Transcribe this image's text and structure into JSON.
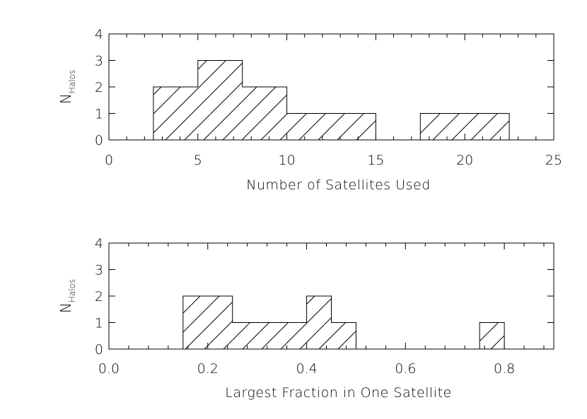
{
  "chart_data": [
    {
      "type": "bar",
      "subtype": "histogram",
      "xlabel": "Number of Satellites Used",
      "ylabel_main": "N",
      "ylabel_sub": "Halos",
      "xlim": [
        0,
        25
      ],
      "ylim": [
        0,
        4
      ],
      "xticks": [
        0,
        5,
        10,
        15,
        20,
        25
      ],
      "xtick_labels": [
        "0",
        "5",
        "10",
        "15",
        "20",
        "25"
      ],
      "yticks": [
        0,
        1,
        2,
        3,
        4
      ],
      "ytick_labels": [
        "0",
        "1",
        "2",
        "3",
        "4"
      ],
      "bin_edges": [
        2.5,
        5,
        7.5,
        10,
        12.5,
        15,
        17.5,
        20,
        22.5
      ],
      "values": [
        2,
        3,
        2,
        1,
        1,
        0,
        1,
        1
      ],
      "fill": "diagonal hatch",
      "grid": false
    },
    {
      "type": "bar",
      "subtype": "histogram",
      "xlabel": "Largest Fraction in One Satellite",
      "ylabel_main": "N",
      "ylabel_sub": "Halos",
      "xlim": [
        0,
        0.9
      ],
      "ylim": [
        0,
        4
      ],
      "xticks": [
        0.0,
        0.2,
        0.4,
        0.6,
        0.8
      ],
      "xtick_labels": [
        "0.0",
        "0.2",
        "0.4",
        "0.6",
        "0.8"
      ],
      "yticks": [
        0,
        1,
        2,
        3,
        4
      ],
      "ytick_labels": [
        "0",
        "1",
        "2",
        "3",
        "4"
      ],
      "bin_edges": [
        0.15,
        0.25,
        0.35,
        0.4,
        0.45,
        0.5,
        0.55,
        0.6,
        0.65,
        0.7,
        0.75,
        0.8
      ],
      "values": [
        2,
        1,
        1,
        2,
        1,
        0,
        0,
        0,
        0,
        0,
        1
      ],
      "fill": "diagonal hatch",
      "grid": false
    }
  ],
  "colors": {
    "ink": "#000000",
    "background": "#ffffff"
  }
}
